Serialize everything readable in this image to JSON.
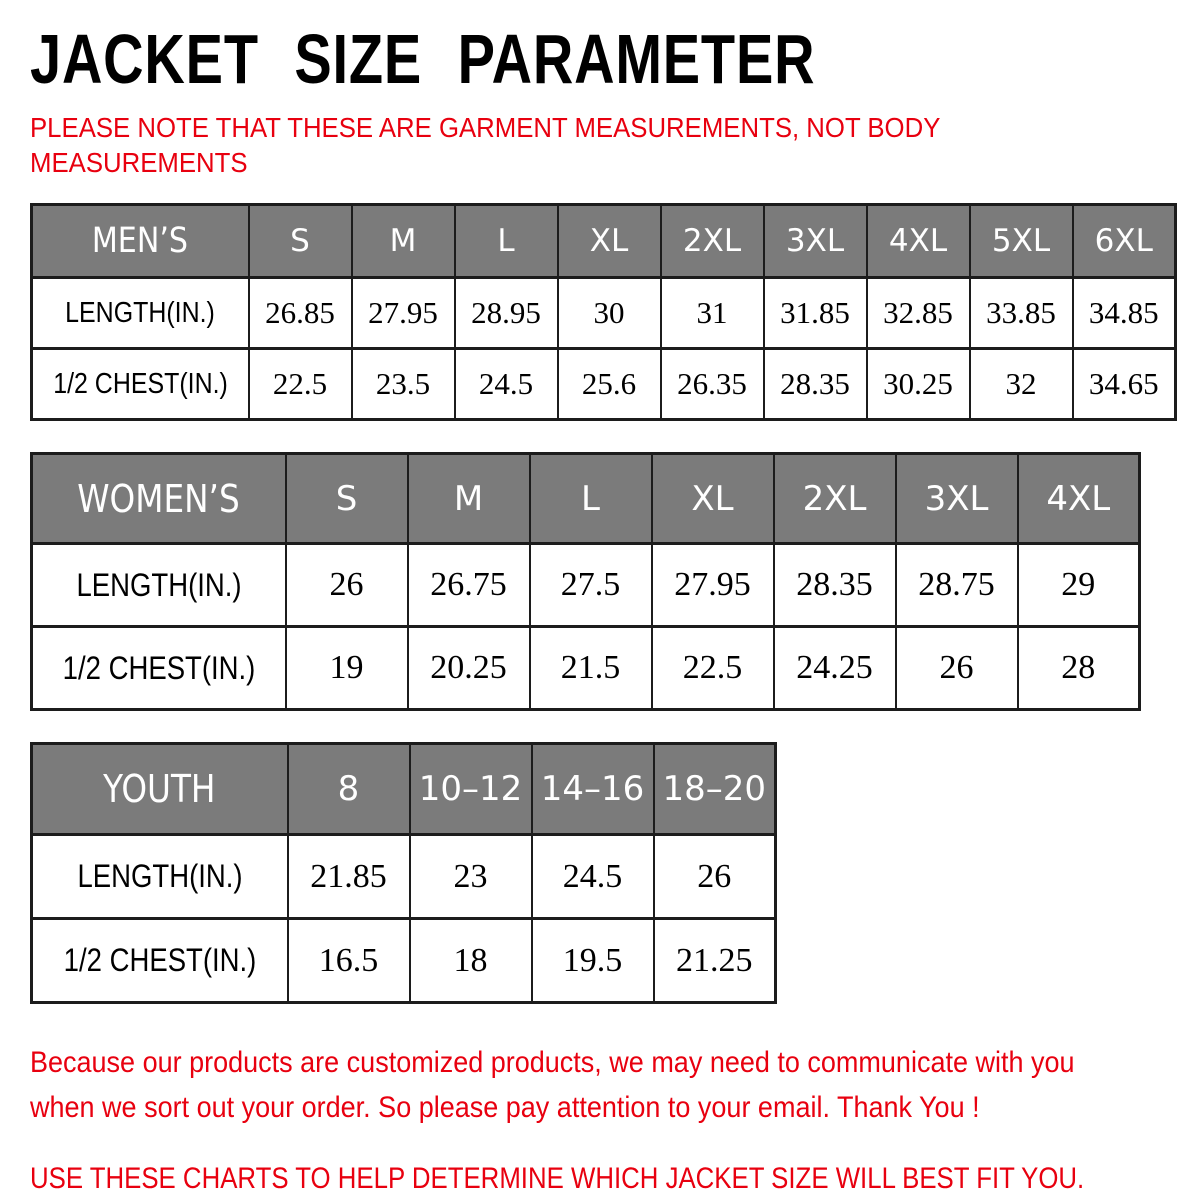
{
  "header": {
    "title": "JACKET SIZE PARAMETER",
    "note_lines": [
      "PLEASE NOTE THAT THESE ARE GARMENT MEASUREMENTS, NOT BODY",
      "MEASUREMENTS"
    ]
  },
  "tables": [
    {
      "id": "mens",
      "header_label": "MEN’S",
      "sizes": [
        "S",
        "M",
        "L",
        "XL",
        "2XL",
        "3XL",
        "4XL",
        "5XL",
        "6XL"
      ],
      "rows": [
        {
          "label": "LENGTH(IN.)",
          "values": [
            "26.85",
            "27.95",
            "28.95",
            "30",
            "31",
            "31.85",
            "32.85",
            "33.85",
            "34.85"
          ]
        },
        {
          "label": "1/2 CHEST(IN.)",
          "values": [
            "22.5",
            "23.5",
            "24.5",
            "25.6",
            "26.35",
            "28.35",
            "30.25",
            "32",
            "34.65"
          ]
        }
      ]
    },
    {
      "id": "womens",
      "header_label": "WOMEN’S",
      "sizes": [
        "S",
        "M",
        "L",
        "XL",
        "2XL",
        "3XL",
        "4XL"
      ],
      "rows": [
        {
          "label": "LENGTH(IN.)",
          "values": [
            "26",
            "26.75",
            "27.5",
            "27.95",
            "28.35",
            "28.75",
            "29"
          ]
        },
        {
          "label": "1/2 CHEST(IN.)",
          "values": [
            "19",
            "20.25",
            "21.5",
            "22.5",
            "24.25",
            "26",
            "28"
          ]
        }
      ]
    },
    {
      "id": "youth",
      "header_label": "YOUTH",
      "sizes": [
        "8",
        "10–12",
        "14–16",
        "18–20"
      ],
      "rows": [
        {
          "label": "LENGTH(IN.)",
          "values": [
            "21.85",
            "23",
            "24.5",
            "26"
          ]
        },
        {
          "label": "1/2 CHEST(IN.)",
          "values": [
            "16.5",
            "18",
            "19.5",
            "21.25"
          ]
        }
      ]
    }
  ],
  "footer": {
    "lines": [
      "Because our products are customized products, we may need to communicate with you",
      "when we sort out your order. So please pay attention to your email. Thank You !",
      "USE THESE CHARTS TO HELP DETERMINE WHICH JACKET SIZE WILL BEST FIT YOU."
    ]
  },
  "colors": {
    "accent_red": "#e8000f",
    "header_gray": "#7b7b7b",
    "border_dark": "#1c1c1c",
    "text_black": "#000000"
  }
}
